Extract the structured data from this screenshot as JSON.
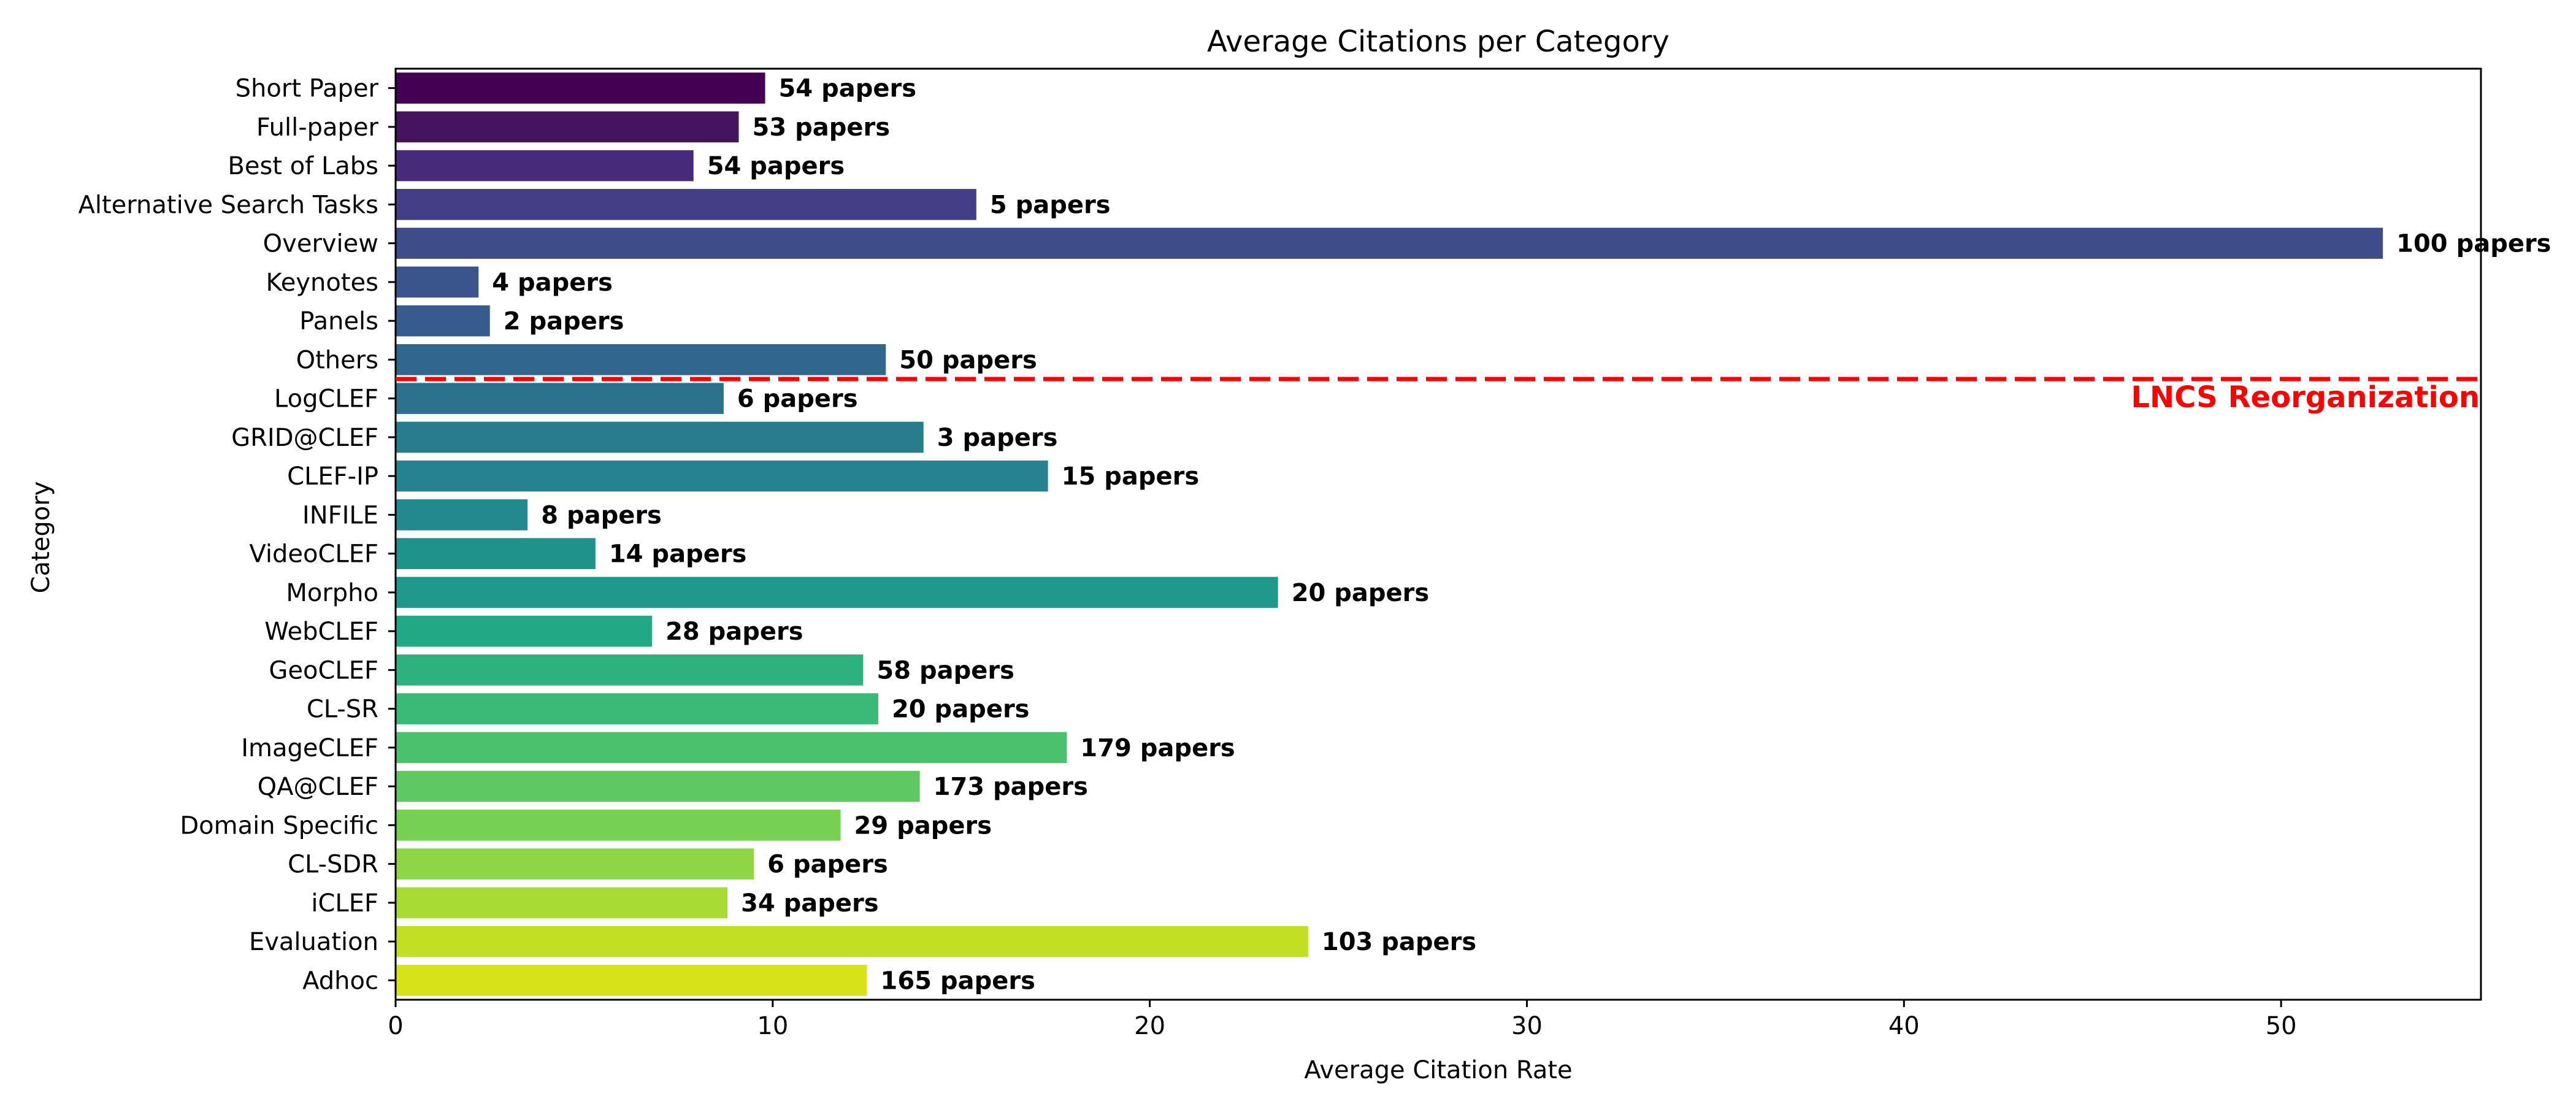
{
  "chart_data": {
    "type": "bar",
    "orientation": "horizontal",
    "title": "Average Citations per Category",
    "xlabel": "Average Citation Rate",
    "ylabel": "Category",
    "xlim": [
      0,
      55.3
    ],
    "xticks": [
      "0",
      "10",
      "20",
      "30",
      "40",
      "50"
    ],
    "grid": false,
    "categories": [
      "Short Paper",
      "Full-paper",
      "Best of Labs",
      "Alternative Search Tasks",
      "Overview",
      "Keynotes",
      "Panels",
      "Others",
      "LogCLEF",
      "GRID@CLEF",
      "CLEF-IP",
      "INFILE",
      "VideoCLEF",
      "Morpho",
      "WebCLEF",
      "GeoCLEF",
      "CL-SR",
      "ImageCLEF",
      "QA@CLEF",
      "Domain Specific",
      "CL-SDR",
      "iCLEF",
      "Evaluation",
      "Adhoc"
    ],
    "values": [
      9.8,
      9.1,
      7.9,
      15.4,
      52.7,
      2.2,
      2.5,
      13.0,
      8.7,
      14.0,
      17.3,
      3.5,
      5.3,
      23.4,
      6.8,
      12.4,
      12.8,
      17.8,
      13.9,
      11.8,
      9.5,
      8.8,
      24.2,
      12.5
    ],
    "labels": [
      "54 papers",
      "53 papers",
      "54 papers",
      "5 papers",
      "100 papers",
      "4 papers",
      "2 papers",
      "50 papers",
      "6 papers",
      "3 papers",
      "15 papers",
      "8 papers",
      "14 papers",
      "20 papers",
      "28 papers",
      "58 papers",
      "20 papers",
      "179 papers",
      "173 papers",
      "29 papers",
      "6 papers",
      "34 papers",
      "103 papers",
      "165 papers"
    ],
    "colors": [
      "#440154",
      "#46135f",
      "#472a7a",
      "#433e85",
      "#3e4c8a",
      "#39558c",
      "#365c8d",
      "#31668e",
      "#2c718e",
      "#297b8e",
      "#26828e",
      "#23898e",
      "#20928c",
      "#1f9a8a",
      "#22a884",
      "#2db27d",
      "#3aba76",
      "#4ac16d",
      "#5ec962",
      "#75d054",
      "#8ed645",
      "#a8db34",
      "#c2df23",
      "#d8e219"
    ],
    "annotations": [
      {
        "text": "LNCS Reorganization",
        "color": "#ff0000",
        "between": [
          "Others",
          "LogCLEF"
        ],
        "style": "dashed-line"
      }
    ]
  }
}
